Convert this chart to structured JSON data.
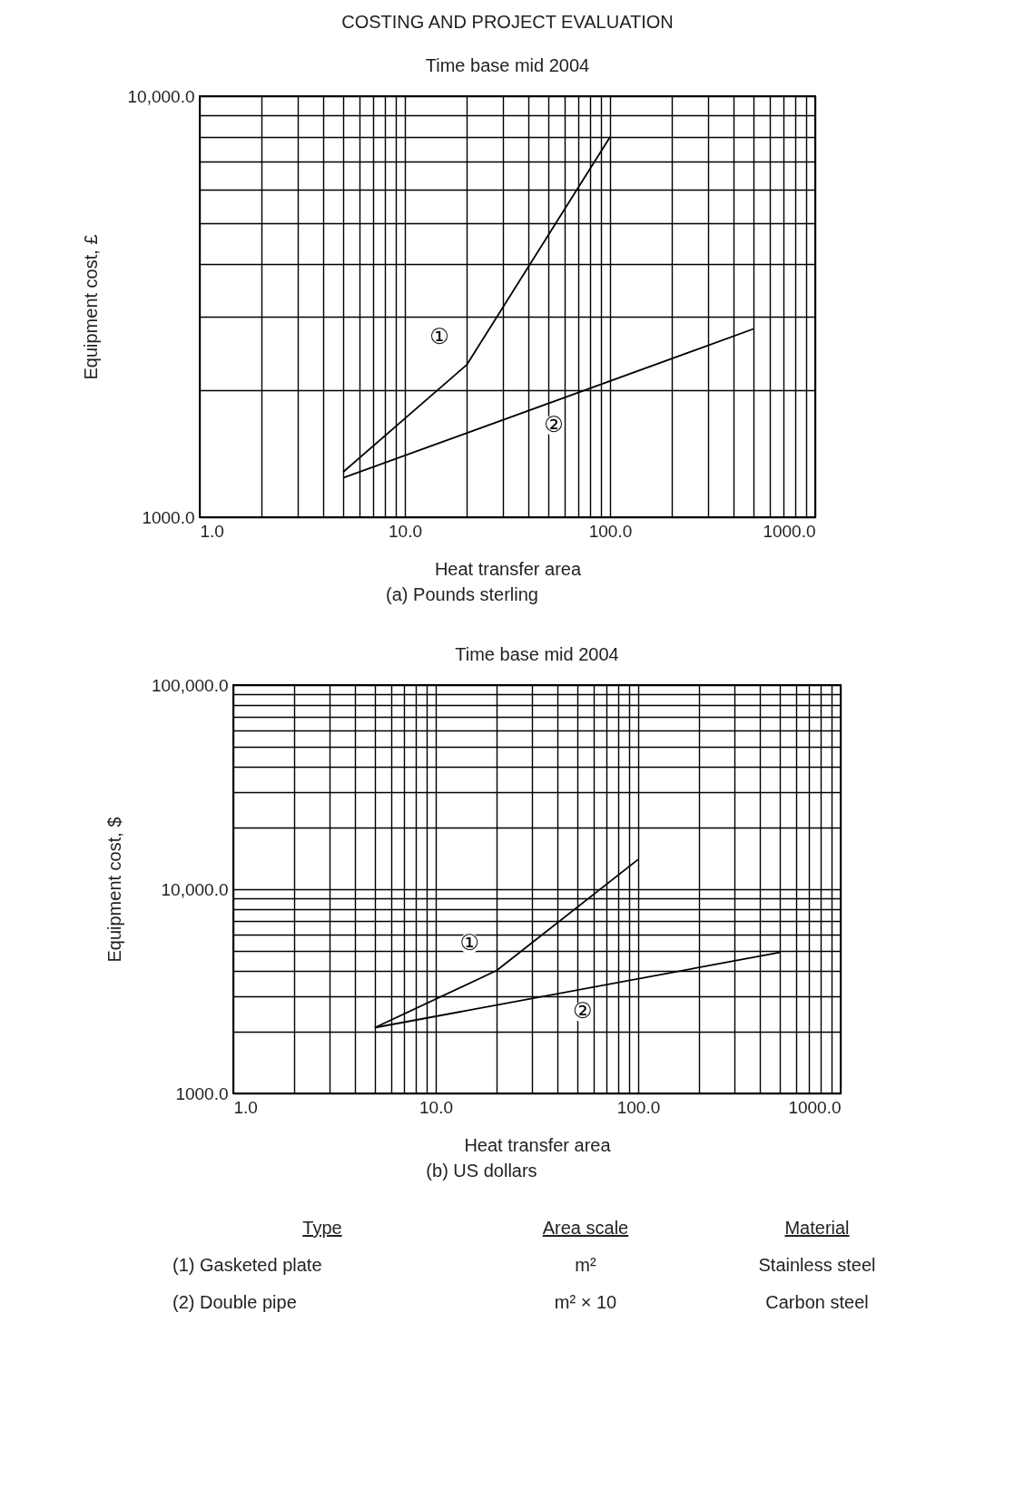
{
  "chart_data": [
    {
      "type": "line",
      "title": "COSTING AND PROJECT EVALUATION",
      "subtitle": "Time base mid 2004",
      "xlabel": "Heat transfer area",
      "ylabel": "Equipment cost, £",
      "annotations": [
        "(a) Pounds sterling"
      ],
      "log": "xy",
      "grid": true,
      "legend": false,
      "marker": "none",
      "line_style": "solid",
      "xlim": [
        1,
        1000
      ],
      "ylim": [
        1000,
        10000
      ],
      "xticks": [
        {
          "value": 1,
          "label": "1.0"
        },
        {
          "value": 2,
          "label": null
        },
        {
          "value": 3,
          "label": null
        },
        {
          "value": 4,
          "label": null
        },
        {
          "value": 5,
          "label": null
        },
        {
          "value": 6,
          "label": null
        },
        {
          "value": 7,
          "label": null
        },
        {
          "value": 8,
          "label": null
        },
        {
          "value": 9,
          "label": null
        },
        {
          "value": 10,
          "label": "10.0"
        },
        {
          "value": 20,
          "label": null
        },
        {
          "value": 30,
          "label": null
        },
        {
          "value": 40,
          "label": null
        },
        {
          "value": 50,
          "label": null
        },
        {
          "value": 60,
          "label": null
        },
        {
          "value": 70,
          "label": null
        },
        {
          "value": 80,
          "label": null
        },
        {
          "value": 90,
          "label": null
        },
        {
          "value": 100,
          "label": "100.0"
        },
        {
          "value": 200,
          "label": null
        },
        {
          "value": 300,
          "label": null
        },
        {
          "value": 400,
          "label": null
        },
        {
          "value": 500,
          "label": null
        },
        {
          "value": 600,
          "label": null
        },
        {
          "value": 700,
          "label": null
        },
        {
          "value": 800,
          "label": null
        },
        {
          "value": 900,
          "label": null
        },
        {
          "value": 1000,
          "label": "1000.0"
        }
      ],
      "yticks": [
        {
          "value": 1000,
          "label": "1000.0"
        },
        {
          "value": 2000,
          "label": null
        },
        {
          "value": 3000,
          "label": null
        },
        {
          "value": 4000,
          "label": null
        },
        {
          "value": 5000,
          "label": null
        },
        {
          "value": 6000,
          "label": null
        },
        {
          "value": 7000,
          "label": null
        },
        {
          "value": 8000,
          "label": null
        },
        {
          "value": 9000,
          "label": null
        },
        {
          "value": 10000,
          "label": "10,000.0"
        }
      ],
      "series": [
        {
          "name": "①",
          "color": "#000000",
          "x": [
            5,
            20,
            100
          ],
          "values": [
            1280,
            2300,
            8000
          ]
        },
        {
          "name": "②",
          "color": "#000000",
          "x": [
            5,
            500
          ],
          "values": [
            1240,
            2800
          ]
        }
      ]
    },
    {
      "type": "line",
      "title": "Time base mid 2004",
      "xlabel": "Heat transfer area",
      "ylabel": "Equipment cost, $",
      "annotations": [
        "(b) US dollars"
      ],
      "log": "xy",
      "grid": true,
      "legend": false,
      "marker": "none",
      "line_style": "solid",
      "xlim": [
        1,
        1000
      ],
      "ylim": [
        1000,
        100000
      ],
      "xticks": [
        {
          "value": 1,
          "label": "1.0"
        },
        {
          "value": 2,
          "label": null
        },
        {
          "value": 3,
          "label": null
        },
        {
          "value": 4,
          "label": null
        },
        {
          "value": 5,
          "label": null
        },
        {
          "value": 6,
          "label": null
        },
        {
          "value": 7,
          "label": null
        },
        {
          "value": 8,
          "label": null
        },
        {
          "value": 9,
          "label": null
        },
        {
          "value": 10,
          "label": "10.0"
        },
        {
          "value": 20,
          "label": null
        },
        {
          "value": 30,
          "label": null
        },
        {
          "value": 40,
          "label": null
        },
        {
          "value": 50,
          "label": null
        },
        {
          "value": 60,
          "label": null
        },
        {
          "value": 70,
          "label": null
        },
        {
          "value": 80,
          "label": null
        },
        {
          "value": 90,
          "label": null
        },
        {
          "value": 100,
          "label": "100.0"
        },
        {
          "value": 200,
          "label": null
        },
        {
          "value": 300,
          "label": null
        },
        {
          "value": 400,
          "label": null
        },
        {
          "value": 500,
          "label": null
        },
        {
          "value": 600,
          "label": null
        },
        {
          "value": 700,
          "label": null
        },
        {
          "value": 800,
          "label": null
        },
        {
          "value": 900,
          "label": null
        },
        {
          "value": 1000,
          "label": "1000.0"
        }
      ],
      "yticks": [
        {
          "value": 1000,
          "label": "1000.0"
        },
        {
          "value": 2000,
          "label": null
        },
        {
          "value": 3000,
          "label": null
        },
        {
          "value": 4000,
          "label": null
        },
        {
          "value": 5000,
          "label": null
        },
        {
          "value": 6000,
          "label": null
        },
        {
          "value": 7000,
          "label": null
        },
        {
          "value": 8000,
          "label": null
        },
        {
          "value": 9000,
          "label": null
        },
        {
          "value": 10000,
          "label": "10,000.0"
        },
        {
          "value": 20000,
          "label": null
        },
        {
          "value": 30000,
          "label": null
        },
        {
          "value": 40000,
          "label": null
        },
        {
          "value": 50000,
          "label": null
        },
        {
          "value": 60000,
          "label": null
        },
        {
          "value": 70000,
          "label": null
        },
        {
          "value": 80000,
          "label": null
        },
        {
          "value": 90000,
          "label": null
        },
        {
          "value": 100000,
          "label": "100,000.0"
        }
      ],
      "series": [
        {
          "name": "①",
          "color": "#000000",
          "x": [
            5,
            20,
            100
          ],
          "values": [
            2100,
            4000,
            14000
          ]
        },
        {
          "name": "②",
          "color": "#000000",
          "x": [
            5,
            500
          ],
          "values": [
            2100,
            4900
          ]
        }
      ]
    },
    {
      "type": "other",
      "annotations": [
        "Type",
        "Area scale",
        "Material",
        "(1) Gasketed plate",
        "m²",
        "Stainless steel",
        "(2) Double pipe",
        "m² × 10",
        "Carbon steel"
      ]
    }
  ]
}
